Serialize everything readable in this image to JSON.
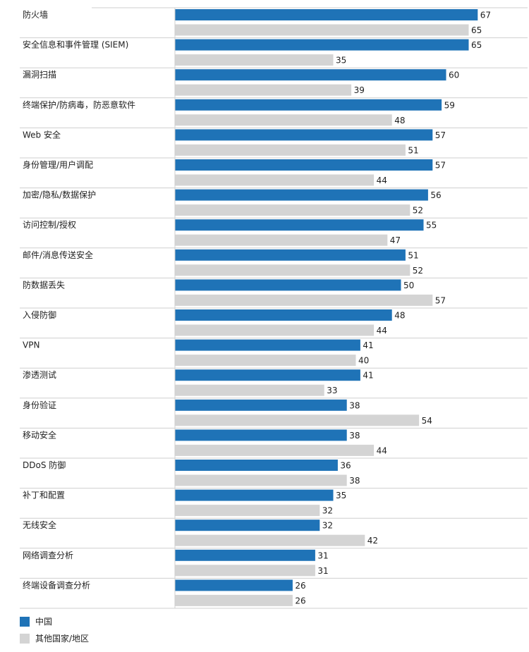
{
  "chart_data": {
    "type": "bar",
    "orientation": "horizontal",
    "categories": [
      "防火墙",
      "安全信息和事件管理 (SIEM)",
      "漏洞扫描",
      "终端保护/防病毒，防恶意软件",
      "Web 安全",
      "身份管理/用户调配",
      "加密/隐私/数据保护",
      "访问控制/授权",
      "邮件/消息传送安全",
      "防数据丢失",
      "入侵防御",
      "VPN",
      "渗透测试",
      "身份验证",
      "移动安全",
      "DDoS 防御",
      "补丁和配置",
      "无线安全",
      "网络调查分析",
      "终端设备调查分析"
    ],
    "series": [
      {
        "name": "中国",
        "color": "#1f73b7",
        "values": [
          67,
          65,
          60,
          59,
          57,
          57,
          56,
          55,
          51,
          50,
          48,
          41,
          41,
          38,
          38,
          36,
          35,
          32,
          31,
          26
        ]
      },
      {
        "name": "其他国家/地区",
        "color": "#d4d4d4",
        "values": [
          65,
          35,
          39,
          48,
          51,
          44,
          52,
          47,
          52,
          57,
          44,
          40,
          33,
          54,
          44,
          38,
          32,
          42,
          31,
          26
        ]
      }
    ],
    "grid": false,
    "legend_position": "bottom-left",
    "colors": {
      "separator": "#cfcfcf",
      "text": "#1f1f1f"
    }
  }
}
